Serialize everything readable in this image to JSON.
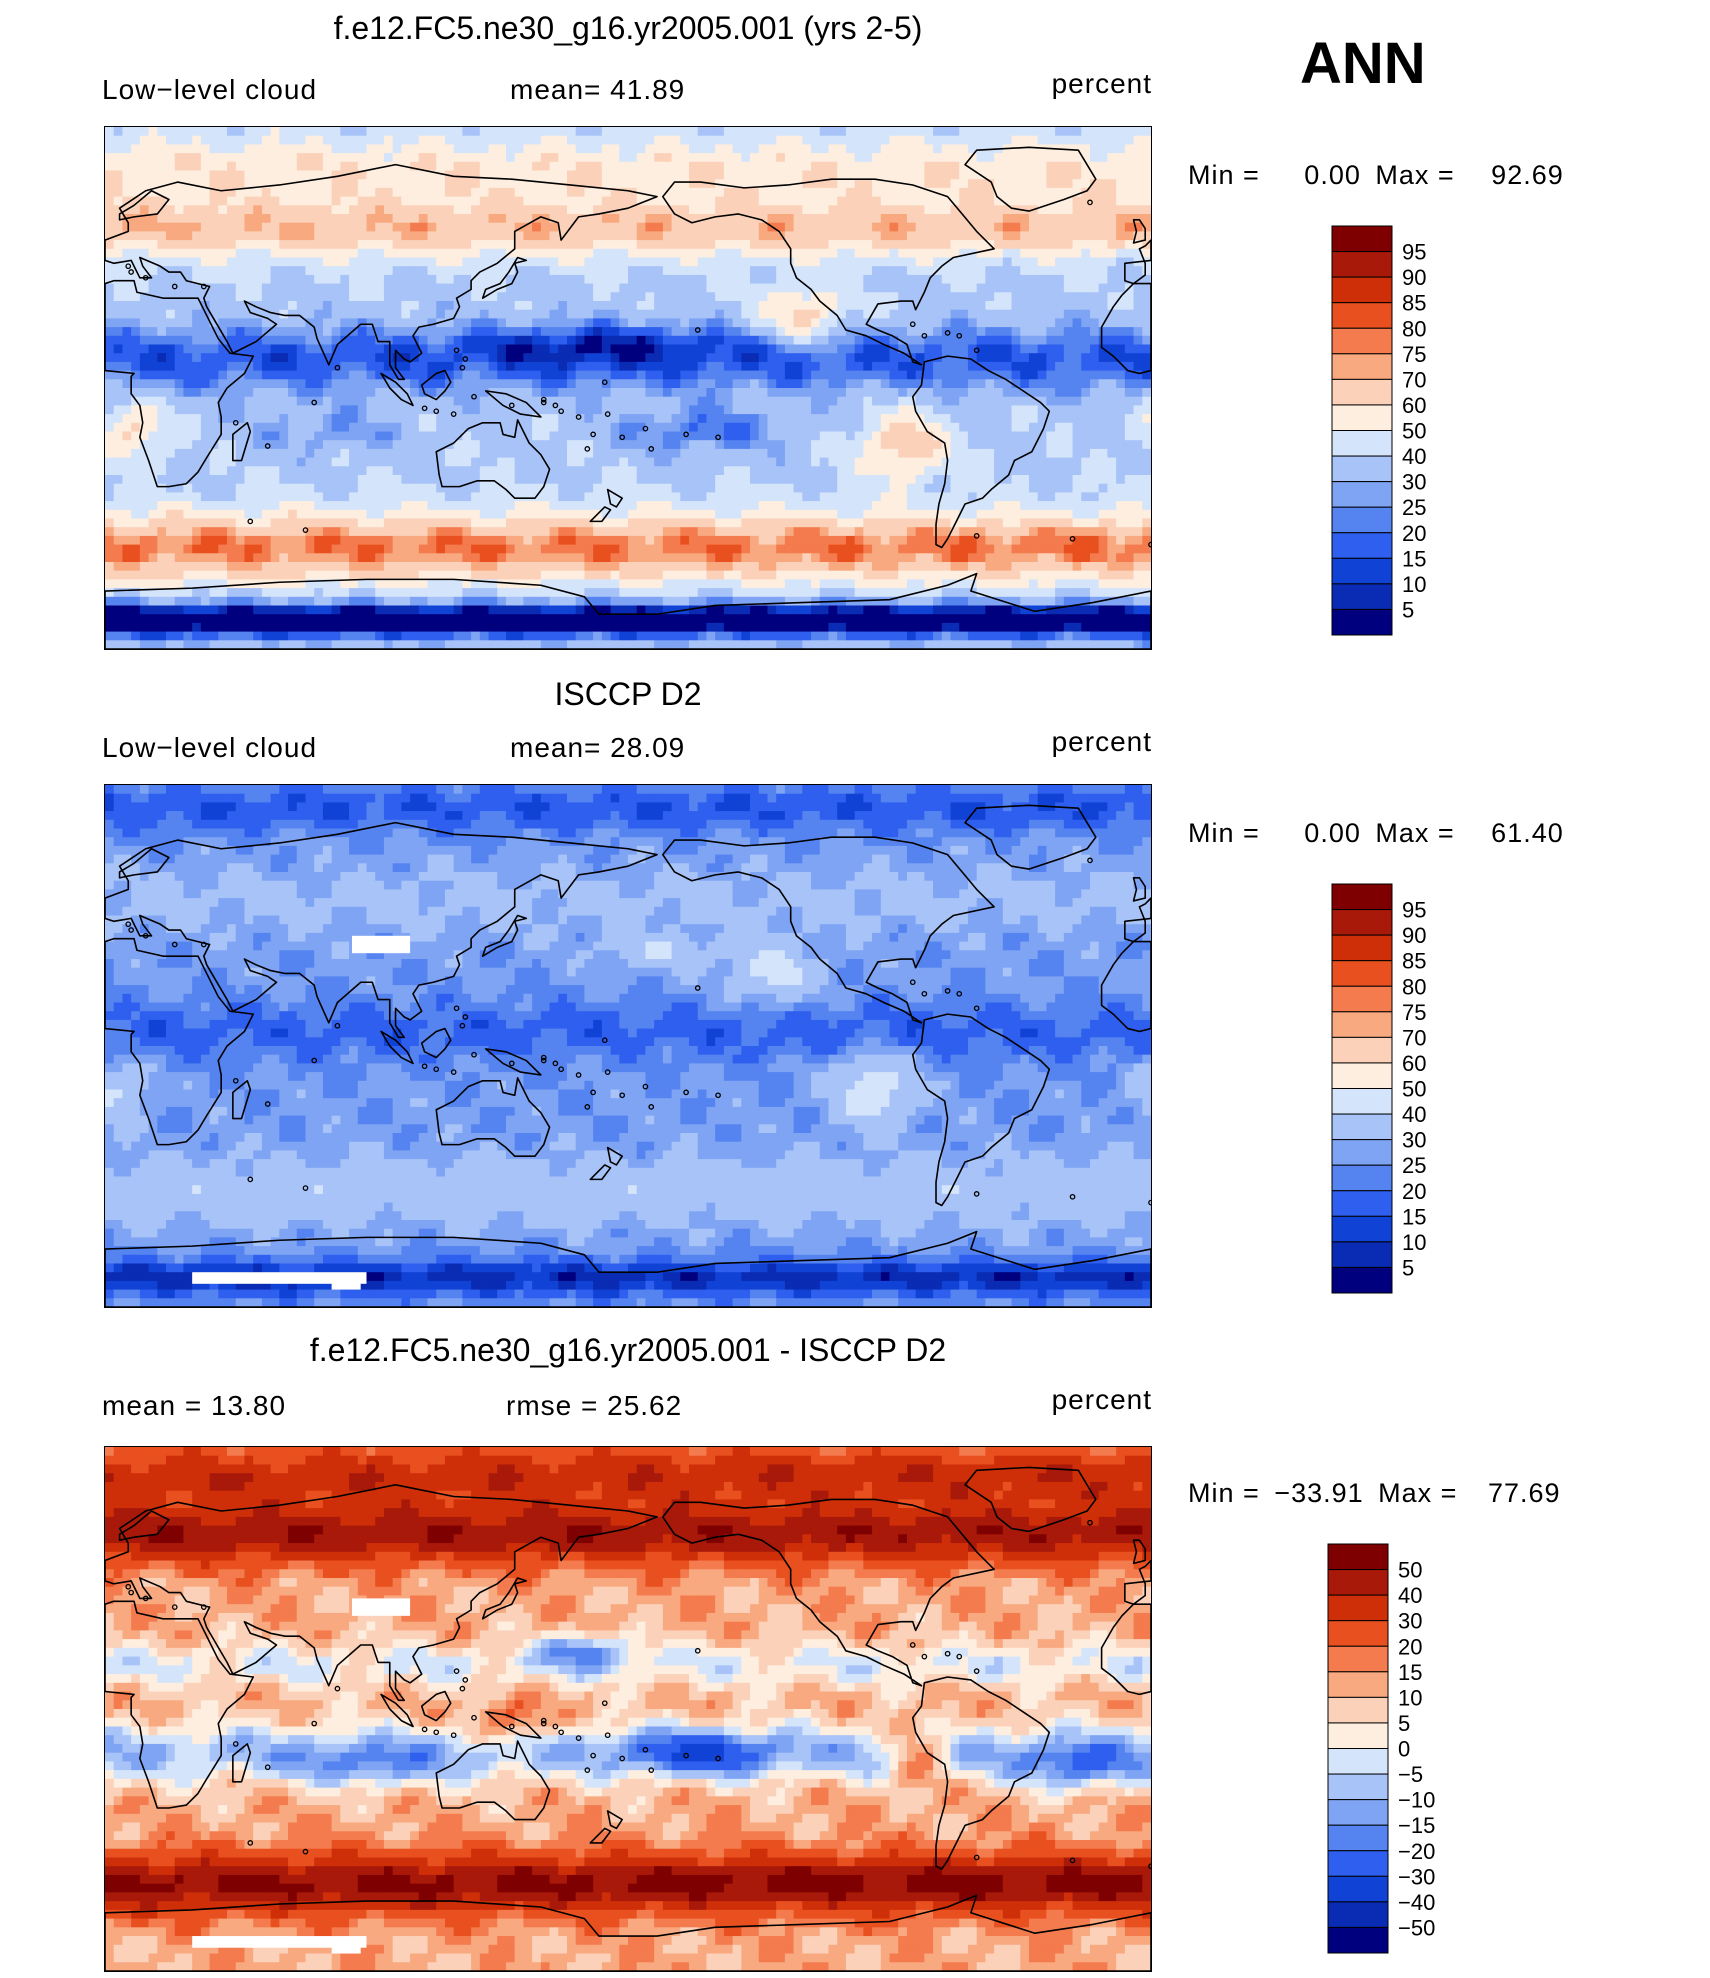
{
  "season": "ANN",
  "palette": {
    "seq": [
      "#00007f",
      "#0a2bb3",
      "#1142d6",
      "#2f5fee",
      "#5584f0",
      "#7fa4f4",
      "#a7c3f7",
      "#d4e4fa",
      "#fdeee0",
      "#fbd2b9",
      "#f8a980",
      "#f47b4e",
      "#e9501f",
      "#cf2f08",
      "#a8190a",
      "#7f0000"
    ],
    "diff": [
      "#00007f",
      "#0a2bb3",
      "#1142d6",
      "#2f5fee",
      "#5584f0",
      "#7fa4f4",
      "#a7c3f7",
      "#d4e4fa",
      "#fdeee0",
      "#fbd2b9",
      "#f8a980",
      "#f47b4e",
      "#e9501f",
      "#cf2f08",
      "#a8190a",
      "#7f0000"
    ]
  },
  "chart_data": [
    {
      "type": "heatmap",
      "title": "f.e12.FC5.ne30_g16.yr2005.001 (yrs 2-5)",
      "left_label": "Low−level cloud",
      "center_label": "mean=   41.89",
      "units": "percent",
      "mean": 41.89,
      "min_label": "Min  =",
      "min_value": "0.00",
      "max_label": "Max  =",
      "max_value": "92.69",
      "levels": [
        "95",
        "90",
        "85",
        "80",
        "75",
        "70",
        "60",
        "50",
        "40",
        "30",
        "25",
        "20",
        "15",
        "10",
        "5"
      ],
      "field_kind": "model"
    },
    {
      "type": "heatmap",
      "title": "ISCCP D2",
      "left_label": "Low−level cloud",
      "center_label": "mean=   28.09",
      "units": "percent",
      "mean": 28.09,
      "min_label": "Min  =",
      "min_value": "0.00",
      "max_label": "Max  =",
      "max_value": "61.40",
      "levels": [
        "95",
        "90",
        "85",
        "80",
        "75",
        "70",
        "60",
        "50",
        "40",
        "30",
        "25",
        "20",
        "15",
        "10",
        "5"
      ],
      "field_kind": "obs"
    },
    {
      "type": "heatmap",
      "title": "f.e12.FC5.ne30_g16.yr2005.001 - ISCCP D2",
      "left_label": "mean  =    13.80",
      "center_label": "rmse  =    25.62",
      "units": "percent",
      "mean": 13.8,
      "rmse": 25.62,
      "min_label": "Min  =",
      "min_value": "−33.91",
      "max_label": "Max  =",
      "max_value": "77.69",
      "levels": [
        "50",
        "40",
        "30",
        "20",
        "15",
        "10",
        "5",
        "0",
        "−5",
        "−10",
        "−15",
        "−20",
        "−30",
        "−40",
        "−50"
      ],
      "field_kind": "diff"
    }
  ]
}
